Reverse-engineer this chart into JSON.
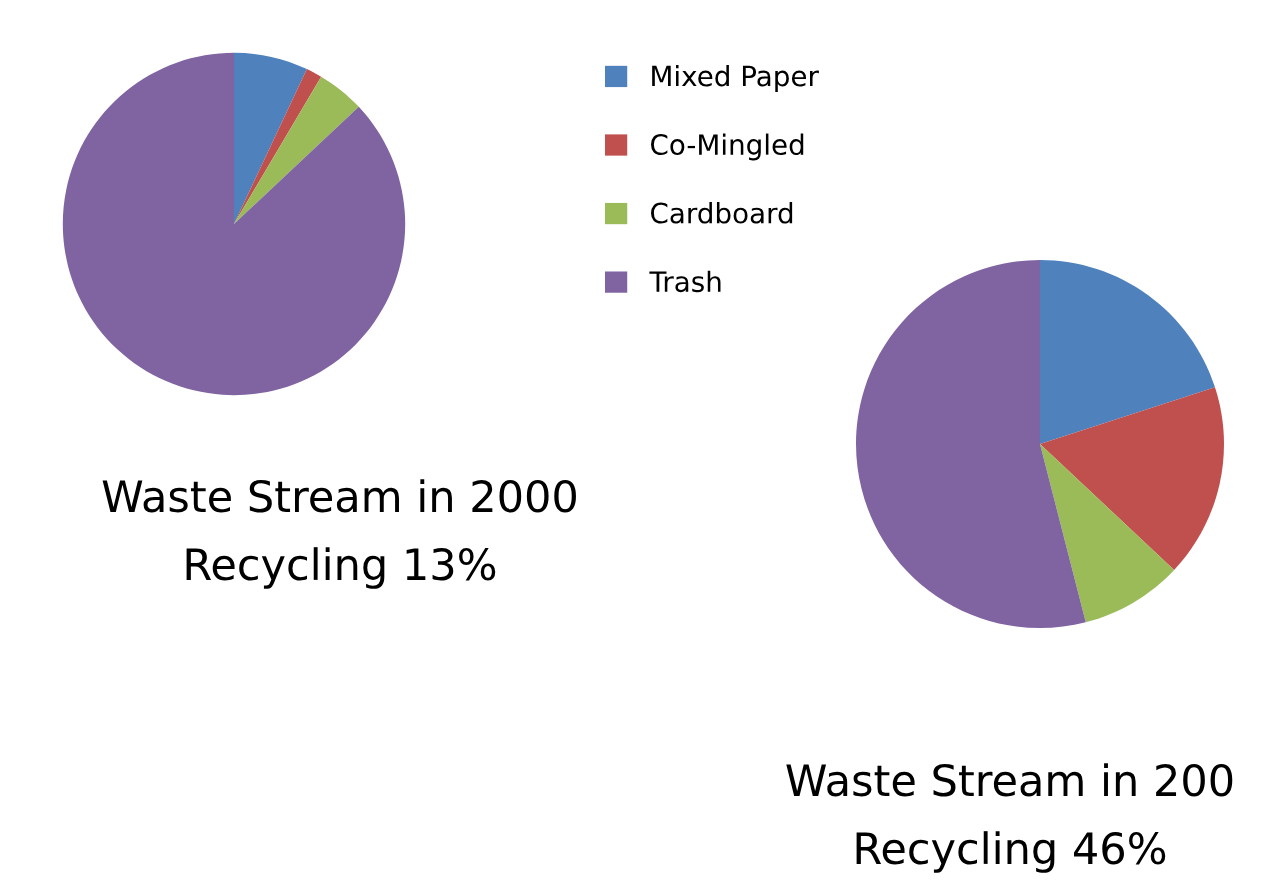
{
  "chart_data": [
    {
      "type": "pie",
      "title": "Waste Stream in 2000",
      "subtitle": "Recycling 13%",
      "categories": [
        "Mixed Paper",
        "Co-Mingled",
        "Cardboard",
        "Trash"
      ],
      "values": [
        7,
        1.5,
        4.5,
        87
      ],
      "colors": [
        "#4f81bd",
        "#c0504d",
        "#9bbb59",
        "#8064a2"
      ],
      "legend": "right"
    },
    {
      "type": "pie",
      "title": "Waste Stream in 200",
      "subtitle": "Recycling 46%",
      "categories": [
        null,
        null,
        null,
        null
      ],
      "values": [
        20,
        17,
        9,
        54
      ],
      "colors": [
        "#4f81bd",
        "#c0504d",
        "#9bbb59",
        "#8064a2"
      ]
    }
  ]
}
